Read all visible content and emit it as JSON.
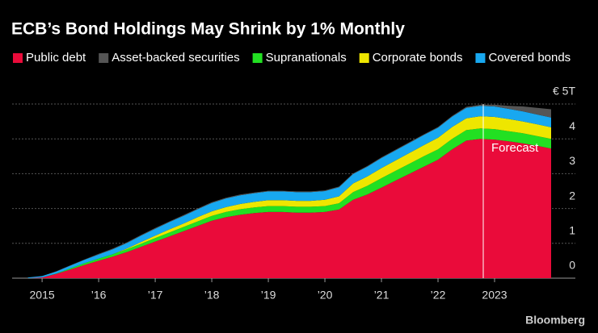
{
  "chart_data": {
    "type": "stacked-area",
    "title": "ECB’s Bond Holdings May Shrink by 1% Monthly",
    "x": [
      2014.75,
      2015,
      2015.25,
      2015.5,
      2015.75,
      2016,
      2016.25,
      2016.5,
      2016.75,
      2017,
      2017.25,
      2017.5,
      2017.75,
      2018,
      2018.25,
      2018.5,
      2018.75,
      2019,
      2019.25,
      2019.5,
      2019.75,
      2020,
      2020.25,
      2020.5,
      2020.75,
      2021,
      2021.25,
      2021.5,
      2021.75,
      2022,
      2022.25,
      2022.5,
      2022.75,
      2023,
      2023.25,
      2023.5,
      2023.75,
      2024
    ],
    "series": [
      {
        "name": "Public debt",
        "color": "#ea0b3a",
        "values": [
          0,
          0.02,
          0.12,
          0.25,
          0.38,
          0.5,
          0.62,
          0.75,
          0.9,
          1.05,
          1.2,
          1.35,
          1.5,
          1.65,
          1.75,
          1.82,
          1.87,
          1.9,
          1.9,
          1.88,
          1.88,
          1.9,
          1.97,
          2.25,
          2.4,
          2.6,
          2.8,
          3.0,
          3.2,
          3.4,
          3.7,
          3.95,
          4.0,
          3.98,
          3.93,
          3.87,
          3.8,
          3.72
        ]
      },
      {
        "name": "Supranationals",
        "color": "#22e022",
        "values": [
          0,
          0,
          0.01,
          0.03,
          0.05,
          0.06,
          0.07,
          0.08,
          0.09,
          0.1,
          0.11,
          0.12,
          0.13,
          0.14,
          0.15,
          0.16,
          0.16,
          0.17,
          0.17,
          0.17,
          0.17,
          0.17,
          0.18,
          0.22,
          0.25,
          0.27,
          0.28,
          0.29,
          0.3,
          0.3,
          0.3,
          0.3,
          0.3,
          0.3,
          0.29,
          0.29,
          0.28,
          0.28
        ]
      },
      {
        "name": "Corporate bonds",
        "color": "#eee600",
        "values": [
          0,
          0,
          0,
          0,
          0,
          0,
          0,
          0.02,
          0.05,
          0.07,
          0.09,
          0.1,
          0.12,
          0.13,
          0.14,
          0.15,
          0.16,
          0.17,
          0.17,
          0.17,
          0.17,
          0.18,
          0.2,
          0.25,
          0.27,
          0.29,
          0.3,
          0.31,
          0.32,
          0.33,
          0.34,
          0.34,
          0.35,
          0.35,
          0.35,
          0.34,
          0.34,
          0.33
        ]
      },
      {
        "name": "Covered bonds",
        "color": "#18a8f0",
        "values": [
          0.02,
          0.04,
          0.06,
          0.08,
          0.1,
          0.12,
          0.14,
          0.16,
          0.18,
          0.2,
          0.21,
          0.22,
          0.23,
          0.24,
          0.25,
          0.25,
          0.25,
          0.25,
          0.25,
          0.25,
          0.25,
          0.25,
          0.26,
          0.27,
          0.28,
          0.29,
          0.29,
          0.29,
          0.29,
          0.29,
          0.3,
          0.3,
          0.3,
          0.3,
          0.29,
          0.29,
          0.28,
          0.28
        ]
      },
      {
        "name": "Asset-backed securities",
        "color": "#555555",
        "values": [
          0,
          0,
          0.01,
          0.01,
          0.01,
          0.02,
          0.02,
          0.02,
          0.02,
          0.02,
          0.02,
          0.02,
          0.02,
          0.02,
          0.02,
          0.02,
          0.02,
          0.02,
          0.02,
          0.02,
          0.02,
          0.02,
          0.02,
          0.02,
          0.02,
          0.02,
          0.02,
          0.02,
          0.02,
          0.02,
          0.02,
          0.03,
          0.03,
          0.05,
          0.09,
          0.14,
          0.19,
          0.24
        ]
      }
    ],
    "xlim": [
      2014.47,
      2024
    ],
    "xticks": [
      2015,
      {
        "value": 2016,
        "label": "’16"
      },
      {
        "value": 2017,
        "label": "’17"
      },
      {
        "value": 2018,
        "label": "’18"
      },
      {
        "value": 2019,
        "label": "’19"
      },
      {
        "value": 2020,
        "label": "’20"
      },
      {
        "value": 2021,
        "label": "’21"
      },
      {
        "value": 2022,
        "label": "’22"
      },
      2023
    ],
    "ylim": [
      0,
      5
    ],
    "yticks": [
      0,
      1,
      2,
      3,
      4,
      {
        "value": 5,
        "label": "€ 5T"
      }
    ],
    "grid": true,
    "forecast_x": 2022.8,
    "annotation": "Forecast",
    "source": "Bloomberg"
  }
}
